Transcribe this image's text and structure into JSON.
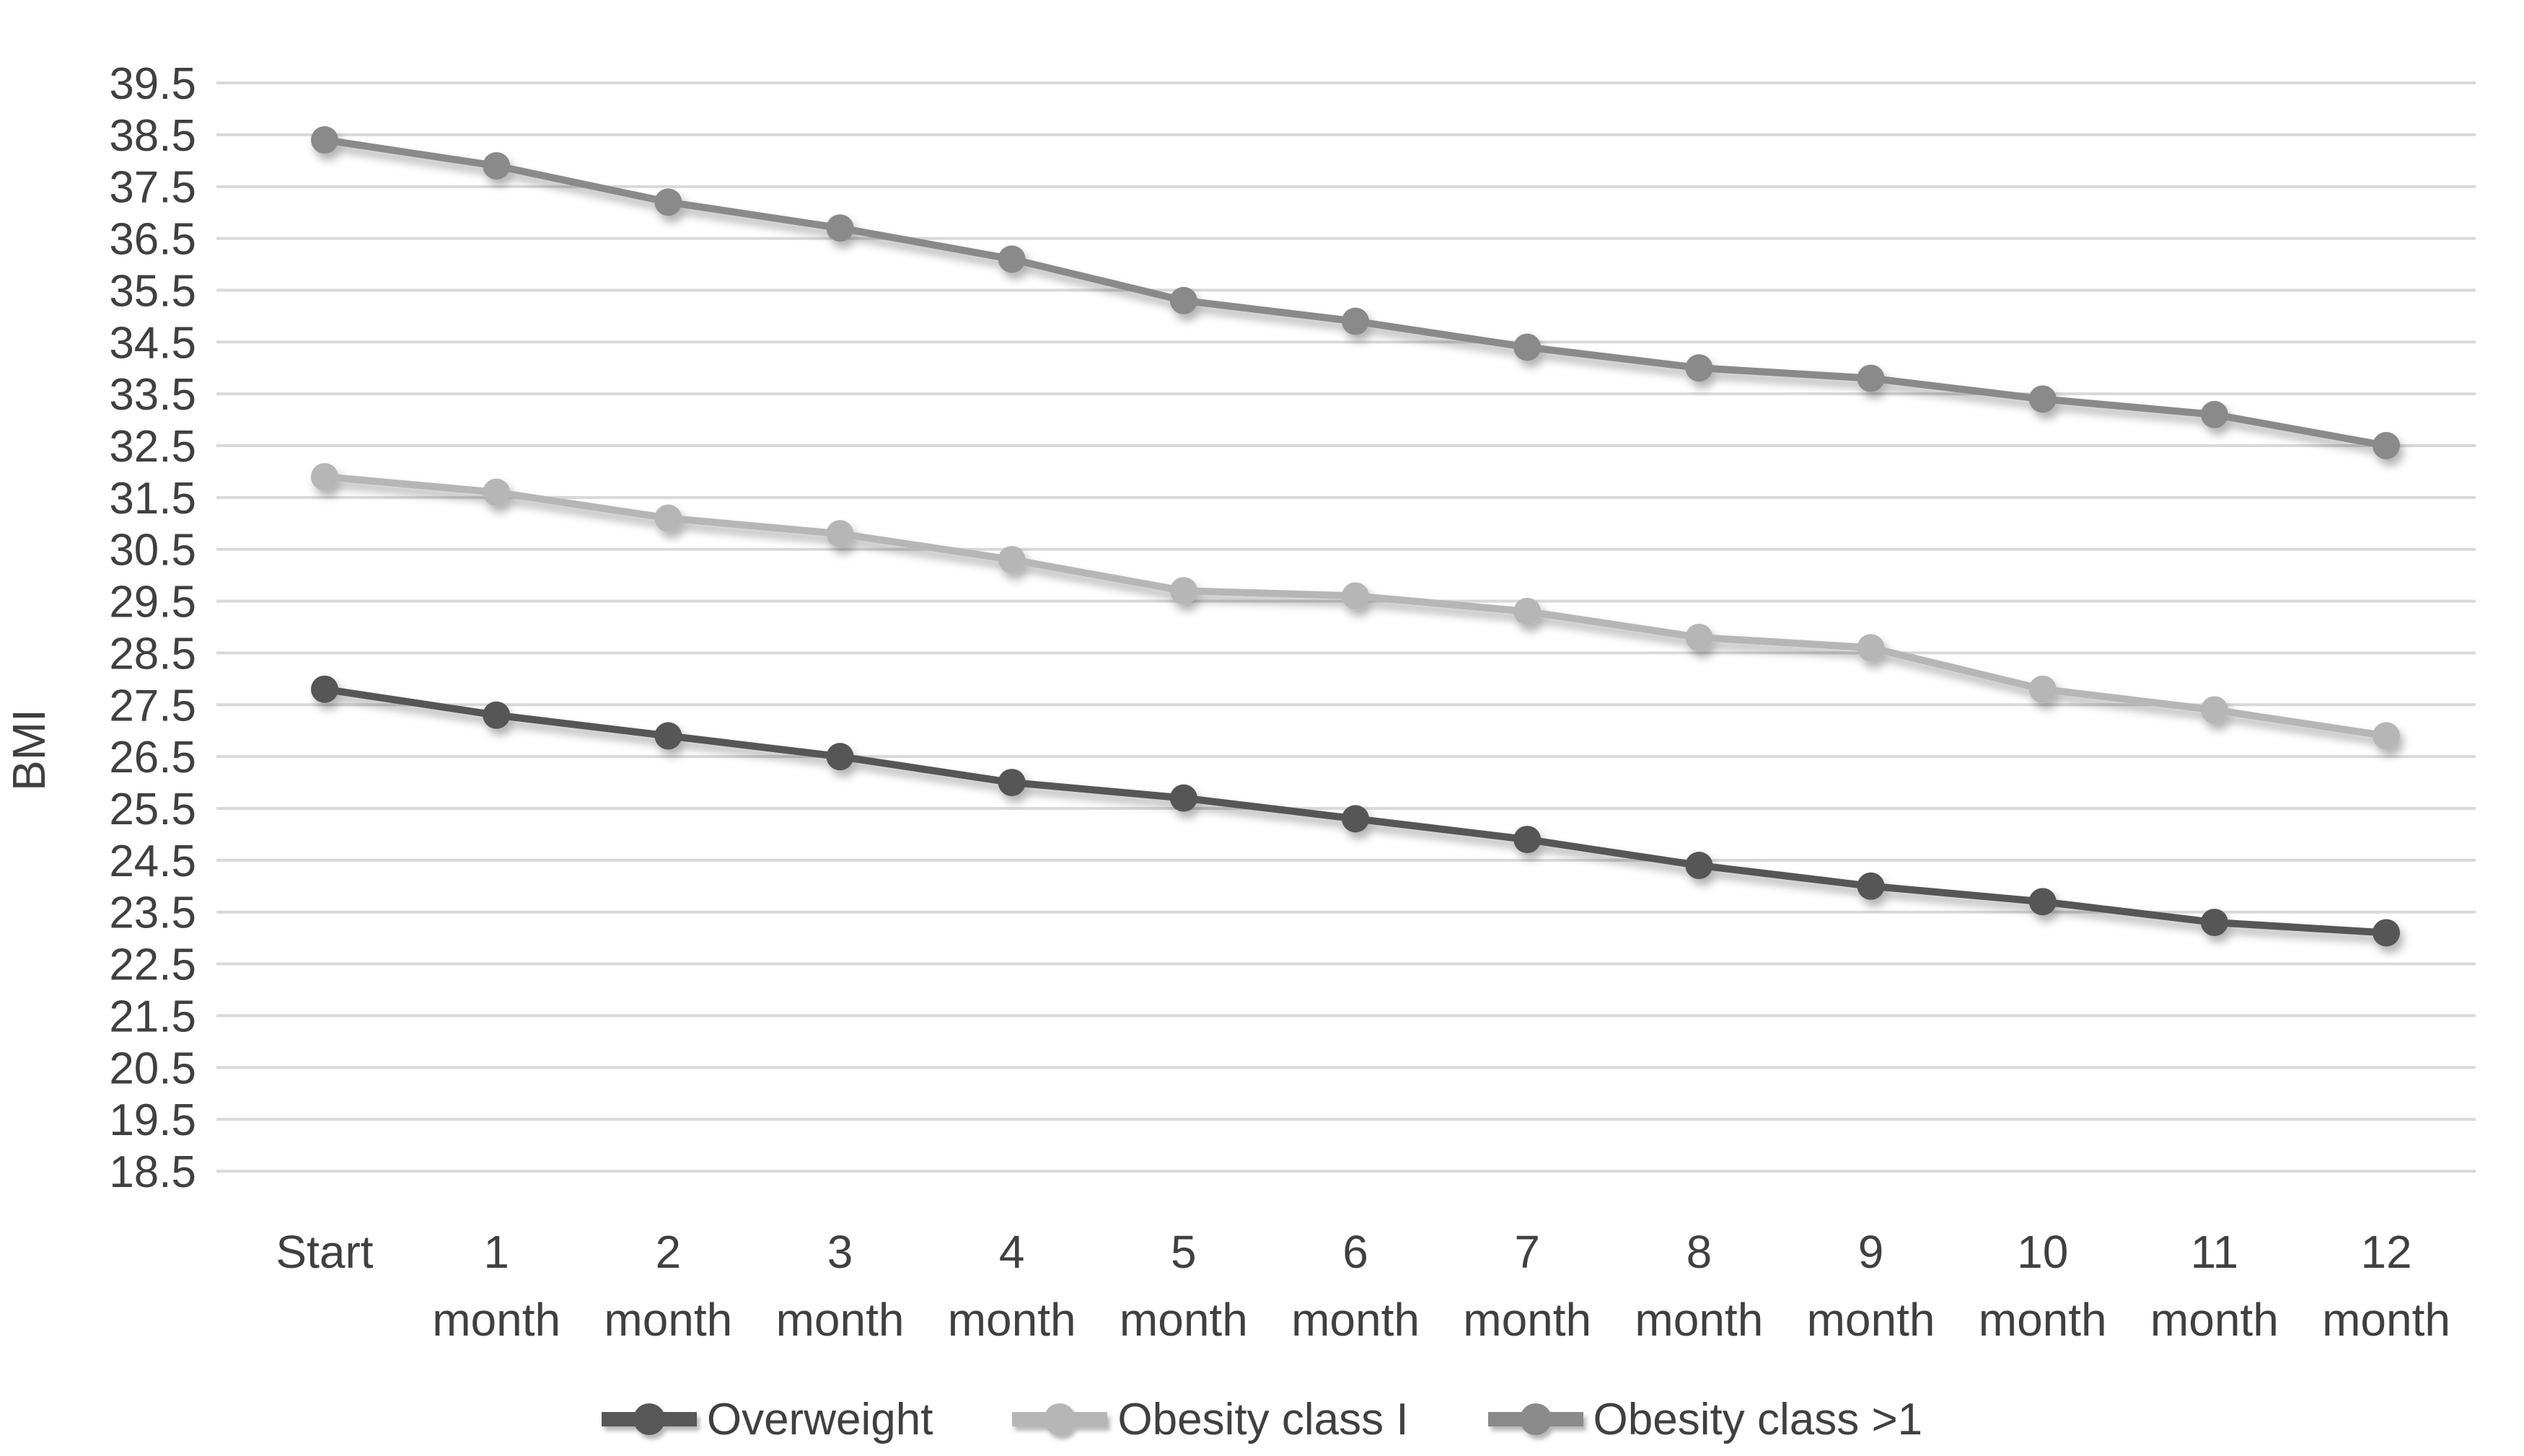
{
  "chart_data": {
    "type": "line",
    "title": "",
    "xlabel": "",
    "ylabel": "BMI",
    "ylim": [
      18.5,
      39.5
    ],
    "y_tick_step": 1.0,
    "y_tick_labels": [
      "18.5",
      "19.5",
      "20.5",
      "21.5",
      "22.5",
      "23.5",
      "24.5",
      "25.5",
      "26.5",
      "27.5",
      "28.5",
      "29.5",
      "30.5",
      "31.5",
      "32.5",
      "33.5",
      "34.5",
      "35.5",
      "36.5",
      "37.5",
      "38.5",
      "39.5"
    ],
    "categories": [
      "Start",
      "1 month",
      "2 month",
      "3 month",
      "4 month",
      "5 month",
      "6 month",
      "7 month",
      "8 month",
      "9 month",
      "10 month",
      "11 month",
      "12 month"
    ],
    "grid": true,
    "legend_position": "bottom",
    "series": [
      {
        "name": "Overweight",
        "color": "#575757",
        "values": [
          27.8,
          27.3,
          26.9,
          26.5,
          26.0,
          25.7,
          25.3,
          24.9,
          24.4,
          24.0,
          23.7,
          23.3,
          23.1
        ]
      },
      {
        "name": "Obesity class I",
        "color": "#b6b6b6",
        "values": [
          31.9,
          31.6,
          31.1,
          30.8,
          30.3,
          29.7,
          29.6,
          29.3,
          28.8,
          28.6,
          27.8,
          27.4,
          26.9
        ]
      },
      {
        "name": "Obesity class >1",
        "color": "#8a8a8a",
        "values": [
          38.4,
          37.9,
          37.2,
          36.7,
          36.1,
          35.3,
          34.9,
          34.4,
          34.0,
          33.8,
          33.4,
          33.1,
          32.5
        ]
      }
    ]
  },
  "colors": {
    "background": "#ffffff",
    "gridline": "#d9d9d9",
    "axis_text": "#404040"
  }
}
